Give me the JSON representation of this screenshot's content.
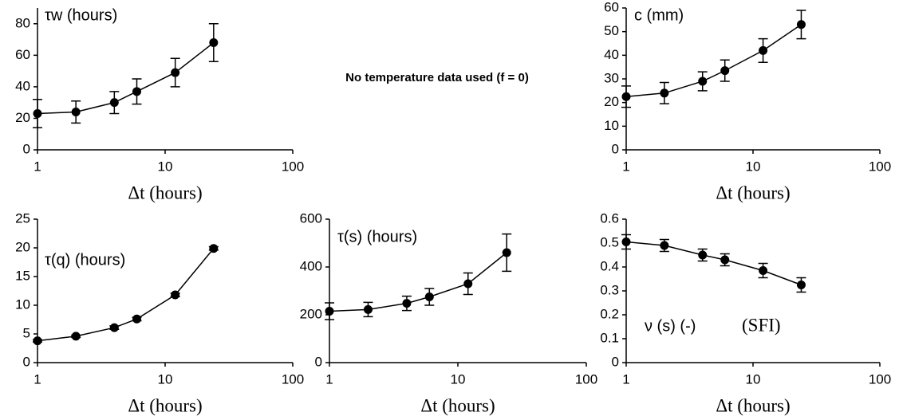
{
  "note": "No temperature data used (f = 0)",
  "chart_data": [
    {
      "type": "line",
      "xscale": "log",
      "ylabel": "τw (hours)",
      "xlabel": "Δt (hours)",
      "color": "#000000",
      "x": [
        1,
        2,
        4,
        6,
        12,
        24
      ],
      "values": [
        23,
        24,
        30,
        37,
        49,
        68
      ],
      "errors": [
        9,
        7,
        7,
        8,
        9,
        12
      ],
      "xlim": [
        1,
        100
      ],
      "xticks": [
        1,
        10,
        100
      ],
      "ylim": [
        0,
        90
      ],
      "yticks": [
        0,
        20,
        40,
        60,
        80
      ]
    },
    {
      "type": "line",
      "xscale": "log",
      "ylabel": "c (mm)",
      "xlabel": "Δt (hours)",
      "color": "#000000",
      "x": [
        1,
        2,
        4,
        6,
        12,
        24
      ],
      "values": [
        22.5,
        24,
        29,
        33.5,
        42,
        53
      ],
      "errors": [
        4.5,
        4.5,
        4,
        4.5,
        5,
        6
      ],
      "xlim": [
        1,
        100
      ],
      "xticks": [
        1,
        10,
        100
      ],
      "ylim": [
        0,
        60
      ],
      "yticks": [
        0,
        10,
        20,
        30,
        40,
        50,
        60
      ]
    },
    {
      "type": "line",
      "xscale": "log",
      "ylabel": "τ(q) (hours)",
      "xlabel": "Δt (hours)",
      "color": "#000000",
      "x": [
        1,
        2,
        4,
        6,
        12,
        24
      ],
      "values": [
        3.8,
        4.6,
        6.1,
        7.6,
        11.8,
        19.9
      ],
      "errors": [
        0.2,
        0.2,
        0.3,
        0.3,
        0.3,
        0.3
      ],
      "xlim": [
        1,
        100
      ],
      "xticks": [
        1,
        10,
        100
      ],
      "ylim": [
        0,
        25
      ],
      "yticks": [
        0,
        5,
        10,
        15,
        20,
        25
      ]
    },
    {
      "type": "line",
      "xscale": "log",
      "ylabel": "τ(s) (hours)",
      "xlabel": "Δt (hours)",
      "color": "#000000",
      "x": [
        1,
        2,
        4,
        6,
        12,
        24
      ],
      "values": [
        215,
        222,
        248,
        275,
        330,
        460
      ],
      "errors": [
        35,
        30,
        30,
        35,
        45,
        78
      ],
      "xlim": [
        1,
        100
      ],
      "xticks": [
        1,
        10,
        100
      ],
      "ylim": [
        0,
        600
      ],
      "yticks": [
        0,
        200,
        400,
        600
      ]
    },
    {
      "type": "line",
      "xscale": "log",
      "ylabel": "ν (s) (-)",
      "annotation": "(SFI)",
      "xlabel": "Δt (hours)",
      "color": "#000000",
      "x": [
        1,
        2,
        4,
        6,
        12,
        24
      ],
      "values": [
        0.505,
        0.49,
        0.45,
        0.43,
        0.385,
        0.325
      ],
      "errors": [
        0.03,
        0.025,
        0.025,
        0.025,
        0.03,
        0.03
      ],
      "xlim": [
        1,
        100
      ],
      "xticks": [
        1,
        10,
        100
      ],
      "ylim": [
        0,
        0.6
      ],
      "yticks": [
        0,
        0.1,
        0.2,
        0.3,
        0.4,
        0.5,
        0.6
      ]
    }
  ]
}
